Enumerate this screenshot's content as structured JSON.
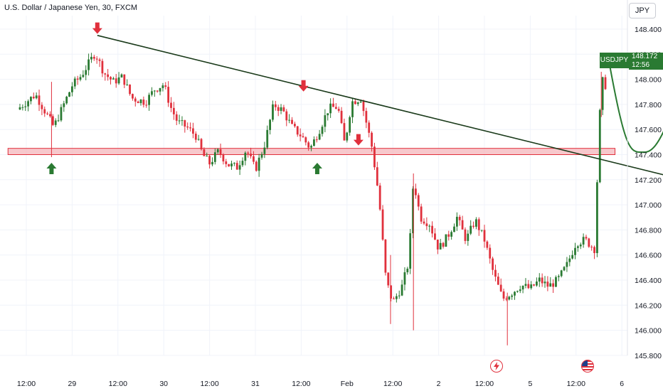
{
  "title": "U.S. Dollar / Japanese Yen, 30, FXCM",
  "currency_button": "JPY",
  "symbol_label": "USDJPY",
  "last_price": "148.172",
  "countdown": "12:56",
  "colors": {
    "up": "#2a7a32",
    "down": "#e0303c",
    "zone_fill": "#f4b6bb",
    "zone_stroke": "#e0303c",
    "trend": "#1a3a1a",
    "axis_text": "#131722",
    "forecast": "#2a7a32"
  },
  "icons": [
    "arrow-down-icon",
    "arrow-up-icon",
    "flash-icon",
    "us-flag-icon"
  ],
  "chart_data": {
    "type": "candlestick",
    "ylim": [
      145.75,
      148.48
    ],
    "y_ticks": [
      "148.400",
      "148.200",
      "148.000",
      "147.800",
      "147.600",
      "147.400",
      "147.200",
      "147.000",
      "146.800",
      "146.600",
      "146.400",
      "146.200",
      "146.000",
      "145.800"
    ],
    "x_ticks": [
      "12:00",
      "29",
      "12:00",
      "30",
      "12:00",
      "31",
      "12:00",
      "Feb",
      "12:00",
      "2",
      "12:00",
      "5",
      "12:00",
      "6"
    ],
    "x_range": [
      0,
      13.9
    ],
    "price_path": [
      [
        -0.2,
        147.76
      ],
      [
        0.2,
        147.88
      ],
      [
        0.6,
        147.62
      ],
      [
        1.0,
        147.95
      ],
      [
        1.2,
        148.03
      ],
      [
        1.5,
        148.21
      ],
      [
        1.7,
        148.05
      ],
      [
        1.9,
        147.98
      ],
      [
        2.1,
        148.02
      ],
      [
        2.3,
        147.85
      ],
      [
        2.6,
        147.82
      ],
      [
        2.8,
        147.92
      ],
      [
        3.0,
        147.96
      ],
      [
        3.15,
        147.78
      ],
      [
        3.3,
        147.66
      ],
      [
        3.5,
        147.62
      ],
      [
        3.7,
        147.55
      ],
      [
        3.85,
        147.4
      ],
      [
        4.0,
        147.33
      ],
      [
        4.2,
        147.43
      ],
      [
        4.4,
        147.32
      ],
      [
        4.6,
        147.3
      ],
      [
        4.8,
        147.44
      ],
      [
        5.0,
        147.28
      ],
      [
        5.2,
        147.48
      ],
      [
        5.4,
        147.8
      ],
      [
        5.6,
        147.75
      ],
      [
        5.8,
        147.62
      ],
      [
        6.0,
        147.55
      ],
      [
        6.2,
        147.45
      ],
      [
        6.4,
        147.6
      ],
      [
        6.6,
        147.77
      ],
      [
        6.8,
        147.78
      ],
      [
        6.95,
        147.48
      ],
      [
        7.1,
        147.82
      ],
      [
        7.3,
        147.85
      ],
      [
        7.55,
        147.45
      ],
      [
        7.7,
        147.05
      ],
      [
        7.85,
        146.4
      ],
      [
        8.0,
        146.22
      ],
      [
        8.2,
        146.35
      ],
      [
        8.35,
        146.55
      ],
      [
        8.45,
        147.2
      ],
      [
        8.6,
        146.9
      ],
      [
        8.8,
        146.85
      ],
      [
        9.0,
        146.65
      ],
      [
        9.2,
        146.75
      ],
      [
        9.4,
        146.9
      ],
      [
        9.6,
        146.72
      ],
      [
        9.8,
        146.88
      ],
      [
        10.0,
        146.72
      ],
      [
        10.2,
        146.45
      ],
      [
        10.4,
        146.25
      ],
      [
        10.6,
        146.3
      ],
      [
        10.8,
        146.36
      ],
      [
        11.0,
        146.33
      ],
      [
        11.2,
        146.4
      ],
      [
        11.4,
        146.35
      ],
      [
        11.6,
        146.4
      ],
      [
        11.8,
        146.52
      ],
      [
        12.0,
        146.7
      ],
      [
        12.2,
        146.72
      ],
      [
        12.4,
        146.65
      ],
      [
        12.55,
        148.0
      ],
      [
        12.7,
        147.92
      ]
    ],
    "support_zone": {
      "x_start": -0.4,
      "x_end": 12.85,
      "y_low": 147.4,
      "y_high": 147.45
    },
    "trendline": {
      "from": [
        1.55,
        148.35
      ],
      "to": [
        13.9,
        147.24
      ]
    },
    "forecast_path": [
      [
        12.7,
        148.18
      ],
      [
        13.1,
        147.6
      ],
      [
        13.5,
        147.42
      ],
      [
        14.1,
        147.7
      ],
      [
        14.6,
        148.35
      ]
    ],
    "forecast_arrow_tip": [
      14.8,
      148.4
    ],
    "markers": [
      {
        "type": "down",
        "x": 1.55,
        "y": 148.34
      },
      {
        "type": "down",
        "x": 6.05,
        "y": 147.88
      },
      {
        "type": "down",
        "x": 7.25,
        "y": 147.45
      },
      {
        "type": "up",
        "x": 0.55,
        "y": 147.38
      },
      {
        "type": "up",
        "x": 6.35,
        "y": 147.38
      }
    ],
    "last": 148.172
  }
}
